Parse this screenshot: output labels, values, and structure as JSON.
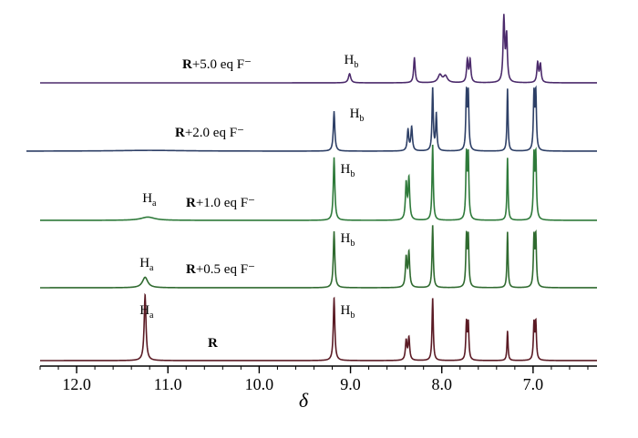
{
  "chart_data": {
    "type": "line",
    "title": "",
    "xlabel": "δ",
    "ylabel": "",
    "xlim": [
      12.4,
      6.3
    ],
    "x_reversed": true,
    "grid": false,
    "legend": "none",
    "xticks": [
      {
        "value": 12.0,
        "label": "12.0"
      },
      {
        "value": 11.0,
        "label": "11.0"
      },
      {
        "value": 10.0,
        "label": "10.0"
      },
      {
        "value": 9.0,
        "label": "9.0"
      },
      {
        "value": 8.0,
        "label": "8.0"
      },
      {
        "value": 7.0,
        "label": "7.0"
      }
    ],
    "series": [
      {
        "label_bold": "R",
        "label_rest": "",
        "color": "#5a1a24",
        "peaks": [
          {
            "shift": 11.25,
            "height": 1.0,
            "width": 0.012
          },
          {
            "shift": 9.18,
            "height": 0.95,
            "width": 0.01
          },
          {
            "shift": 8.39,
            "height": 0.3,
            "width": 0.01
          },
          {
            "shift": 8.36,
            "height": 0.34,
            "width": 0.01
          },
          {
            "shift": 8.1,
            "height": 0.95,
            "width": 0.008
          },
          {
            "shift": 7.73,
            "height": 0.55,
            "width": 0.008
          },
          {
            "shift": 7.71,
            "height": 0.55,
            "width": 0.008
          },
          {
            "shift": 7.28,
            "height": 0.45,
            "width": 0.007
          },
          {
            "shift": 6.99,
            "height": 0.55,
            "width": 0.008
          },
          {
            "shift": 6.97,
            "height": 0.55,
            "width": 0.008
          }
        ],
        "annotations": [
          {
            "shift": 11.25,
            "text": "H",
            "sub": "a"
          },
          {
            "shift": 9.05,
            "text": "H",
            "sub": "b"
          }
        ]
      },
      {
        "label_bold": "R",
        "label_rest": "+0.5 eq F⁻",
        "color": "#2f6a2f",
        "peaks": [
          {
            "shift": 11.25,
            "height": 0.16,
            "width": 0.035
          },
          {
            "shift": 9.18,
            "height": 0.85,
            "width": 0.01
          },
          {
            "shift": 8.39,
            "height": 0.45,
            "width": 0.01
          },
          {
            "shift": 8.36,
            "height": 0.52,
            "width": 0.01
          },
          {
            "shift": 8.1,
            "height": 0.95,
            "width": 0.008
          },
          {
            "shift": 7.73,
            "height": 0.75,
            "width": 0.008
          },
          {
            "shift": 7.71,
            "height": 0.75,
            "width": 0.008
          },
          {
            "shift": 7.28,
            "height": 0.85,
            "width": 0.007
          },
          {
            "shift": 6.99,
            "height": 0.75,
            "width": 0.008
          },
          {
            "shift": 6.97,
            "height": 0.75,
            "width": 0.008
          }
        ],
        "annotations": [
          {
            "shift": 11.25,
            "text": "H",
            "sub": "a"
          },
          {
            "shift": 9.05,
            "text": "H",
            "sub": "b"
          }
        ]
      },
      {
        "label_bold": "R",
        "label_rest": "+1.0 eq F⁻",
        "color": "#2e7a3a",
        "peaks": [
          {
            "shift": 11.22,
            "height": 0.05,
            "width": 0.09
          },
          {
            "shift": 9.18,
            "height": 0.95,
            "width": 0.01
          },
          {
            "shift": 8.39,
            "height": 0.55,
            "width": 0.01
          },
          {
            "shift": 8.36,
            "height": 0.62,
            "width": 0.01
          },
          {
            "shift": 8.1,
            "height": 1.15,
            "width": 0.008
          },
          {
            "shift": 7.73,
            "height": 0.95,
            "width": 0.008
          },
          {
            "shift": 7.71,
            "height": 0.95,
            "width": 0.008
          },
          {
            "shift": 7.28,
            "height": 0.95,
            "width": 0.007
          },
          {
            "shift": 6.99,
            "height": 0.95,
            "width": 0.008
          },
          {
            "shift": 6.97,
            "height": 0.95,
            "width": 0.008
          }
        ],
        "annotations": [
          {
            "shift": 11.22,
            "text": "H",
            "sub": "a"
          },
          {
            "shift": 9.05,
            "text": "H",
            "sub": "b"
          }
        ]
      },
      {
        "label_bold": "R",
        "label_rest": "+2.0 eq F⁻",
        "color": "#2d3f66",
        "peaks": [
          {
            "shift": 11.2,
            "height": 0.012,
            "width": 0.45
          },
          {
            "shift": 9.18,
            "height": 0.6,
            "width": 0.01
          },
          {
            "shift": 8.37,
            "height": 0.32,
            "width": 0.01
          },
          {
            "shift": 8.33,
            "height": 0.36,
            "width": 0.01
          },
          {
            "shift": 8.1,
            "height": 0.95,
            "width": 0.008
          },
          {
            "shift": 8.06,
            "height": 0.55,
            "width": 0.008
          },
          {
            "shift": 7.73,
            "height": 0.85,
            "width": 0.008
          },
          {
            "shift": 7.71,
            "height": 0.85,
            "width": 0.008
          },
          {
            "shift": 7.28,
            "height": 0.95,
            "width": 0.007
          },
          {
            "shift": 6.99,
            "height": 0.85,
            "width": 0.008
          },
          {
            "shift": 6.97,
            "height": 0.85,
            "width": 0.008
          }
        ],
        "annotations": [
          {
            "shift": 8.95,
            "text": "H",
            "sub": "b"
          }
        ]
      },
      {
        "label_bold": "R",
        "label_rest": "+5.0 eq F⁻",
        "color": "#4b2a6b",
        "peaks": [
          {
            "shift": 9.01,
            "height": 0.14,
            "width": 0.015
          },
          {
            "shift": 8.3,
            "height": 0.38,
            "width": 0.01
          },
          {
            "shift": 8.02,
            "height": 0.12,
            "width": 0.025
          },
          {
            "shift": 7.96,
            "height": 0.1,
            "width": 0.025
          },
          {
            "shift": 7.72,
            "height": 0.34,
            "width": 0.01
          },
          {
            "shift": 7.69,
            "height": 0.34,
            "width": 0.01
          },
          {
            "shift": 7.32,
            "height": 1.0,
            "width": 0.01
          },
          {
            "shift": 7.29,
            "height": 0.7,
            "width": 0.01
          },
          {
            "shift": 6.95,
            "height": 0.3,
            "width": 0.01
          },
          {
            "shift": 6.92,
            "height": 0.28,
            "width": 0.01
          }
        ],
        "annotations": [
          {
            "shift": 9.01,
            "text": "H",
            "sub": "b"
          }
        ]
      }
    ]
  }
}
